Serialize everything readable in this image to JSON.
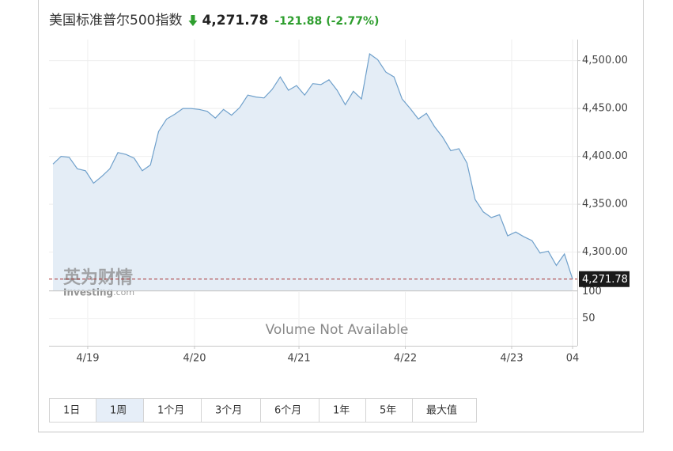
{
  "chart_data": {
    "type": "line",
    "title": "美国标准普尔500指数",
    "price_label": "4,271.78",
    "change": -121.88,
    "change_percent": "(-2.77%)",
    "watermark_cn": "英为财情",
    "watermark_en": "Investing",
    "watermark_suffix": ".com",
    "color": "#6fa0cb",
    "fill": "#e4edf6",
    "values": [
      4392,
      4400,
      4399,
      4387,
      4385,
      4372,
      4379,
      4387,
      4404,
      4402,
      4398,
      4385,
      4391,
      4426,
      4439,
      4444,
      4450,
      4450,
      4449,
      4447,
      4440,
      4449,
      4443,
      4451,
      4464,
      4462,
      4461,
      4470,
      4483,
      4469,
      4474,
      4464,
      4476,
      4475,
      4480,
      4469,
      4454,
      4468,
      4460,
      4507,
      4501,
      4488,
      4483,
      4460,
      4450,
      4439,
      4445,
      4431,
      4420,
      4406,
      4408,
      4393,
      4355,
      4342,
      4336,
      4339,
      4317,
      4321,
      4316,
      4312,
      4299,
      4301,
      4286,
      4298,
      4271.78
    ],
    "current": {
      "value": 4271.78,
      "label": "4,271.78"
    },
    "ylim": [
      4260,
      4522
    ],
    "yticks": [
      {
        "value": 4500,
        "label": "4,500.00"
      },
      {
        "value": 4450,
        "label": "4,450.00"
      },
      {
        "value": 4400,
        "label": "4,400.00"
      },
      {
        "value": 4350,
        "label": "4,350.00"
      },
      {
        "value": 4300,
        "label": "4,300.00"
      }
    ],
    "xticks": [
      {
        "value": 4.28,
        "label": "4/19"
      },
      {
        "value": 17.43,
        "label": "4/20"
      },
      {
        "value": 30.3,
        "label": "4/21"
      },
      {
        "value": 43.4,
        "label": "4/22"
      },
      {
        "value": 56.5,
        "label": "4/23"
      },
      {
        "value": 64,
        "label": "04"
      }
    ],
    "grid": true,
    "volume_panel": {
      "ylim": [
        0,
        102
      ],
      "yticks": [
        100,
        50
      ],
      "note": "Volume Not Available"
    },
    "ranges": [
      "1日",
      "1周",
      "1个月",
      "3个月",
      "6个月",
      "1年",
      "5年",
      "最大值"
    ],
    "selected_range": 1
  }
}
